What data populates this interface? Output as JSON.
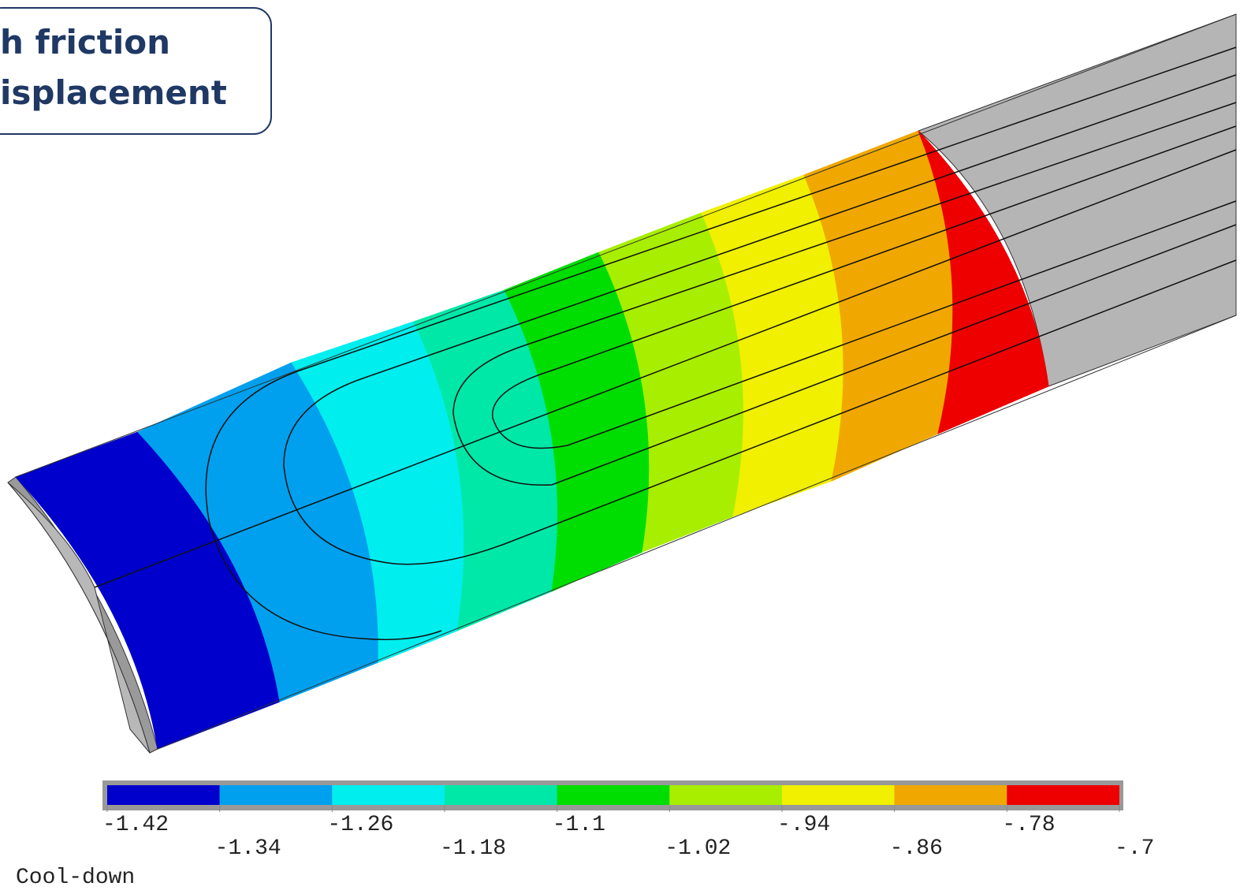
{
  "label_box": {
    "lines": [
      "h friction",
      "isplacement"
    ]
  },
  "legend": {
    "colors": [
      "#0000cc",
      "#00a0ee",
      "#00eeee",
      "#00e8a8",
      "#00dd00",
      "#a8ee00",
      "#f0f000",
      "#f0a800",
      "#ee0000"
    ],
    "labels": [
      "-1.42",
      "-1.34",
      "-1.26",
      "-1.18",
      "-1.1",
      "-1.02",
      "-.94",
      "-.86",
      "-.78",
      "-.7"
    ]
  },
  "caption": "Cool-down"
}
